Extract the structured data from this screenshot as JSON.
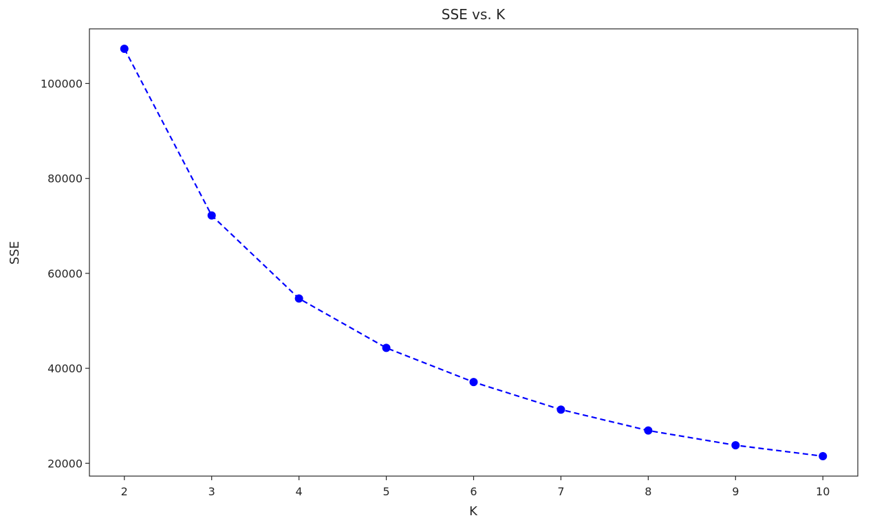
{
  "chart_data": {
    "type": "line",
    "title": "SSE vs. K",
    "xlabel": "K",
    "ylabel": "SSE",
    "x": [
      2,
      3,
      4,
      5,
      6,
      7,
      8,
      9,
      10
    ],
    "series": [
      {
        "values": [
          107300,
          72200,
          54700,
          44300,
          37100,
          31300,
          26900,
          23800,
          21500
        ],
        "color": "#0000ff",
        "line_style": "dashed",
        "marker": "circle"
      }
    ],
    "xlim": [
      1.6,
      10.4
    ],
    "ylim": [
      17300,
      111500
    ],
    "xticks": [
      2,
      3,
      4,
      5,
      6,
      7,
      8,
      9,
      10
    ],
    "yticks": [
      20000,
      40000,
      60000,
      80000,
      100000
    ],
    "grid": false,
    "legend": "none"
  }
}
